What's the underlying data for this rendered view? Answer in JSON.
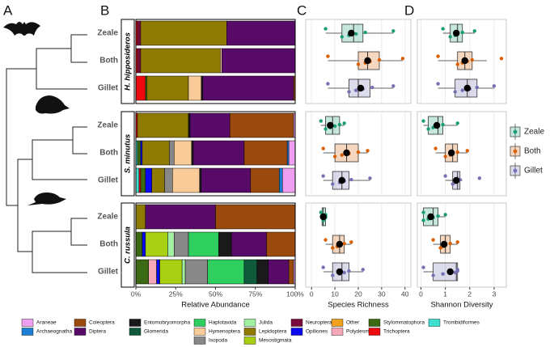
{
  "panel_labels": [
    "A",
    "B",
    "C",
    "D"
  ],
  "chart_data": [
    {
      "type": "stacked_bar_h",
      "x_label": "Relative Abundance",
      "facets": [
        "H. hipposideros",
        "S. minutus",
        "C. russula"
      ],
      "categories": [
        "Zeale",
        "Both",
        "Gillet"
      ],
      "xlim": [
        0,
        100
      ],
      "xticks": [
        {
          "value": 0,
          "label": "0%"
        },
        {
          "value": 25,
          "label": "25%"
        },
        {
          "value": 50,
          "label": "50%"
        },
        {
          "value": 75,
          "label": "75%"
        },
        {
          "value": 100,
          "label": "100%"
        }
      ],
      "legend": "bottom",
      "series": [
        {
          "name": "Araneae",
          "color": "#ef9fef",
          "values": [
            [
              0,
              0,
              0
            ],
            [
              1,
              4,
              8
            ],
            [
              0,
              0,
              1
            ]
          ]
        },
        {
          "name": "Archaeognatha",
          "color": "#1b7fd4",
          "values": [
            [
              0,
              0,
              0
            ],
            [
              0,
              1,
              2
            ],
            [
              0,
              0,
              0
            ]
          ]
        },
        {
          "name": "Coleoptera",
          "color": "#9a4a0c",
          "values": [
            [
              0,
              0,
              1
            ],
            [
              40,
              27,
              18
            ],
            [
              50,
              18,
              3
            ]
          ]
        },
        {
          "name": "Diptera",
          "color": "#570a68",
          "values": [
            [
              43,
              46,
              57
            ],
            [
              25,
              32,
              31
            ],
            [
              44,
              22,
              13
            ]
          ]
        },
        {
          "name": "Entomobryomorpha",
          "color": "#1a1a1a",
          "values": [
            [
              0,
              0,
              1
            ],
            [
              1,
              1,
              1
            ],
            [
              0,
              8,
              7
            ]
          ]
        },
        {
          "name": "Glomerida",
          "color": "#0e5a3a",
          "values": [
            [
              0,
              0,
              0
            ],
            [
              0,
              0,
              0
            ],
            [
              0,
              0,
              8
            ]
          ]
        },
        {
          "name": "Haplotaxida",
          "color": "#2fcf5f",
          "values": [
            [
              0,
              0,
              0
            ],
            [
              0,
              0,
              0
            ],
            [
              0,
              19,
              23
            ]
          ]
        },
        {
          "name": "Hymenoptera",
          "color": "#f8cb98",
          "values": [
            [
              0,
              1,
              8
            ],
            [
              0,
              11,
              17
            ],
            [
              0,
              0,
              0
            ]
          ]
        },
        {
          "name": "Isopoda",
          "color": "#888888",
          "values": [
            [
              0,
              0,
              0
            ],
            [
              0,
              3,
              5
            ],
            [
              0,
              9,
              14
            ]
          ]
        },
        {
          "name": "Julida",
          "color": "#a2f0a2",
          "values": [
            [
              0,
              0,
              0
            ],
            [
              0,
              0,
              0
            ],
            [
              0,
              4,
              2
            ]
          ]
        },
        {
          "name": "Lepidoptera",
          "color": "#8e7a02",
          "values": [
            [
              54,
              50,
              26
            ],
            [
              32,
              17,
              8
            ],
            [
              6,
              0,
              0
            ]
          ]
        },
        {
          "name": "Mesostigmata",
          "color": "#a8cf12",
          "values": [
            [
              0,
              0,
              0
            ],
            [
              0,
              0,
              0
            ],
            [
              0,
              14,
              14
            ]
          ]
        },
        {
          "name": "Neuroptera",
          "color": "#7a0a3c",
          "values": [
            [
              2,
              2,
              0
            ],
            [
              0,
              0,
              0
            ],
            [
              0,
              0,
              0
            ]
          ]
        },
        {
          "name": "Opiliones",
          "color": "#0a0af0",
          "values": [
            [
              0,
              0,
              0
            ],
            [
              0,
              1,
              4
            ],
            [
              0,
              2,
              2
            ]
          ]
        },
        {
          "name": "Other",
          "color": "#f2a11f",
          "values": [
            [
              0,
              0,
              0
            ],
            [
              0,
              0,
              0
            ],
            [
              0,
              0,
              0
            ]
          ]
        },
        {
          "name": "Polydesmida",
          "color": "#f5a8b8",
          "values": [
            [
              0,
              0,
              0
            ],
            [
              0,
              0,
              0
            ],
            [
              0,
              0,
              5
            ]
          ]
        },
        {
          "name": "Stylommatophora",
          "color": "#3b6a12",
          "values": [
            [
              0,
              0,
              1
            ],
            [
              0,
              2,
              3
            ],
            [
              0,
              4,
              8
            ]
          ]
        },
        {
          "name": "Trichoptera",
          "color": "#ef0a10",
          "values": [
            [
              1,
              1,
              6
            ],
            [
              1,
              0,
              1
            ],
            [
              0,
              0,
              0
            ]
          ]
        },
        {
          "name": "Trombidiformes",
          "color": "#3fdfcf",
          "values": [
            [
              0,
              0,
              0
            ],
            [
              0,
              1,
              2
            ],
            [
              0,
              0,
              0
            ]
          ]
        }
      ]
    },
    {
      "type": "box",
      "x_label": "Species Richness",
      "categories": [
        "Zeale",
        "Both",
        "Gillet"
      ],
      "colors": [
        "#1b9e77",
        "#d95f02",
        "#7570b3"
      ],
      "legend": "right",
      "grid": true,
      "xlim": [
        -2.5,
        42.5
      ],
      "xticks": [
        0,
        10,
        20,
        30,
        40
      ],
      "boxes": [
        [
          {
            "low": 6,
            "q1": 13,
            "median": 18,
            "q3": 22,
            "high": 35,
            "mean": 17,
            "points": [
              6,
              13,
              16,
              19,
              23,
              35
            ]
          },
          {
            "low": 7,
            "q1": 20,
            "median": 24,
            "q3": 29,
            "high": 39,
            "mean": 24,
            "points": [
              7,
              20,
              23,
              25,
              29,
              39
            ]
          },
          {
            "low": 7,
            "q1": 16,
            "median": 20,
            "q3": 25,
            "high": 35,
            "mean": 21,
            "points": [
              7,
              16,
              19,
              22,
              26,
              35
            ]
          }
        ],
        [
          {
            "low": 4,
            "q1": 6,
            "median": 9,
            "q3": 12,
            "high": 14,
            "mean": 8,
            "points": [
              4,
              6,
              8,
              10,
              12,
              14
            ]
          },
          {
            "low": 5,
            "q1": 10,
            "median": 15,
            "q3": 20,
            "high": 24,
            "mean": 15,
            "points": [
              5,
              10,
              13,
              16,
              20,
              24
            ]
          },
          {
            "low": 5,
            "q1": 9,
            "median": 13,
            "q3": 16,
            "high": 25,
            "mean": 13,
            "points": [
              5,
              9,
              12,
              14,
              17,
              25
            ]
          }
        ],
        [
          {
            "low": 4,
            "q1": 4.5,
            "median": 5,
            "q3": 6,
            "high": 6,
            "mean": 5,
            "points": [
              4,
              5,
              5,
              6,
              6,
              6
            ]
          },
          {
            "low": 6,
            "q1": 9,
            "median": 12,
            "q3": 14,
            "high": 17,
            "mean": 12,
            "points": [
              6,
              9,
              11,
              12,
              14,
              17
            ]
          },
          {
            "low": 5,
            "q1": 9,
            "median": 13,
            "q3": 16,
            "high": 22,
            "mean": 12,
            "points": [
              5,
              9,
              12,
              14,
              16,
              22
            ]
          }
        ]
      ]
    },
    {
      "type": "box",
      "x_label": "Shannon Diversity",
      "colors": [
        "#1b9e77",
        "#d95f02",
        "#7570b3"
      ],
      "grid": true,
      "xlim": [
        -0.15,
        3.5
      ],
      "xticks": [
        0,
        1,
        2,
        3
      ],
      "boxes": [
        [
          {
            "low": 0.9,
            "q1": 1.2,
            "median": 1.5,
            "q3": 1.7,
            "high": 2.2,
            "mean": 1.45,
            "points": [
              0.9,
              1.2,
              1.4,
              1.5,
              1.7,
              2.2
            ]
          },
          {
            "low": 0.7,
            "q1": 1.5,
            "median": 1.8,
            "q3": 2.1,
            "high": 2.7,
            "mean": 1.8,
            "points": [
              0.7,
              1.5,
              1.7,
              1.9,
              2.1,
              3.3
            ]
          },
          {
            "low": 0.7,
            "q1": 1.4,
            "median": 1.9,
            "q3": 2.3,
            "high": 3.0,
            "mean": 1.9,
            "points": [
              0.7,
              1.4,
              1.7,
              2.0,
              2.3,
              3.0
            ]
          }
        ],
        [
          {
            "low": 0.1,
            "q1": 0.3,
            "median": 0.7,
            "q3": 0.9,
            "high": 1.5,
            "mean": 0.65,
            "points": [
              0.1,
              0.3,
              0.5,
              0.7,
              0.9,
              1.5
            ]
          },
          {
            "low": 0.6,
            "q1": 1.0,
            "median": 1.3,
            "q3": 1.5,
            "high": 1.9,
            "mean": 1.25,
            "points": [
              0.6,
              1.0,
              1.2,
              1.3,
              1.5,
              1.9
            ]
          },
          {
            "low": 1.0,
            "q1": 1.3,
            "median": 1.5,
            "q3": 1.6,
            "high": 1.7,
            "mean": 1.45,
            "points": [
              1.0,
              1.3,
              1.4,
              1.5,
              1.6,
              2.4
            ]
          }
        ],
        [
          {
            "low": 0.1,
            "q1": 0.1,
            "median": 0.5,
            "q3": 0.7,
            "high": 1.0,
            "mean": 0.4,
            "points": [
              0.1,
              0.1,
              0.3,
              0.5,
              0.7,
              1.0
            ]
          },
          {
            "low": 0.5,
            "q1": 0.8,
            "median": 1.0,
            "q3": 1.2,
            "high": 1.5,
            "mean": 0.95,
            "points": [
              0.5,
              0.8,
              0.9,
              1.0,
              1.2,
              1.5
            ]
          },
          {
            "low": 0.1,
            "q1": 0.5,
            "median": 1.45,
            "q3": 1.5,
            "high": 1.5,
            "mean": 1.2,
            "points": [
              0.1,
              0.5,
              0.9,
              1.4,
              1.5,
              1.5
            ]
          }
        ]
      ]
    }
  ]
}
